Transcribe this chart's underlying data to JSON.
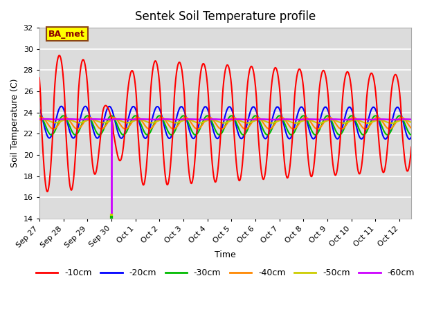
{
  "title": "Sentek Soil Temperature profile",
  "xlabel": "Time",
  "ylabel": "Soil Temperature (C)",
  "ylim": [
    14,
    32
  ],
  "yticks": [
    14,
    16,
    18,
    20,
    22,
    24,
    26,
    28,
    30,
    32
  ],
  "plot_bg_color": "#dcdcdc",
  "fig_bg_color": "#ffffff",
  "annotation_text": "BA_met",
  "annotation_bg": "#ffff00",
  "annotation_border": "#8B4513",
  "series_colors": {
    "-10cm": "#ff0000",
    "-20cm": "#0000ff",
    "-30cm": "#00bb00",
    "-40cm": "#ff8800",
    "-50cm": "#cccc00",
    "-60cm": "#cc00ff"
  },
  "n_days": 15.5,
  "samples_per_day": 96,
  "vline_day": 3.0,
  "vline_color_top": "#cc00ff",
  "vline_color_bot": "#cccc00",
  "xtick_labels": [
    "Sep 27",
    "Sep 28",
    "Sep 29",
    "Sep 30",
    "Oct 1",
    "Oct 2",
    "Oct 3",
    "Oct 4",
    "Oct 5",
    "Oct 6",
    "Oct 7",
    "Oct 8",
    "Oct 9",
    "Oct 10",
    "Oct 11",
    "Oct 12"
  ],
  "grid_color": "#ffffff",
  "grid_alpha": 1.0
}
